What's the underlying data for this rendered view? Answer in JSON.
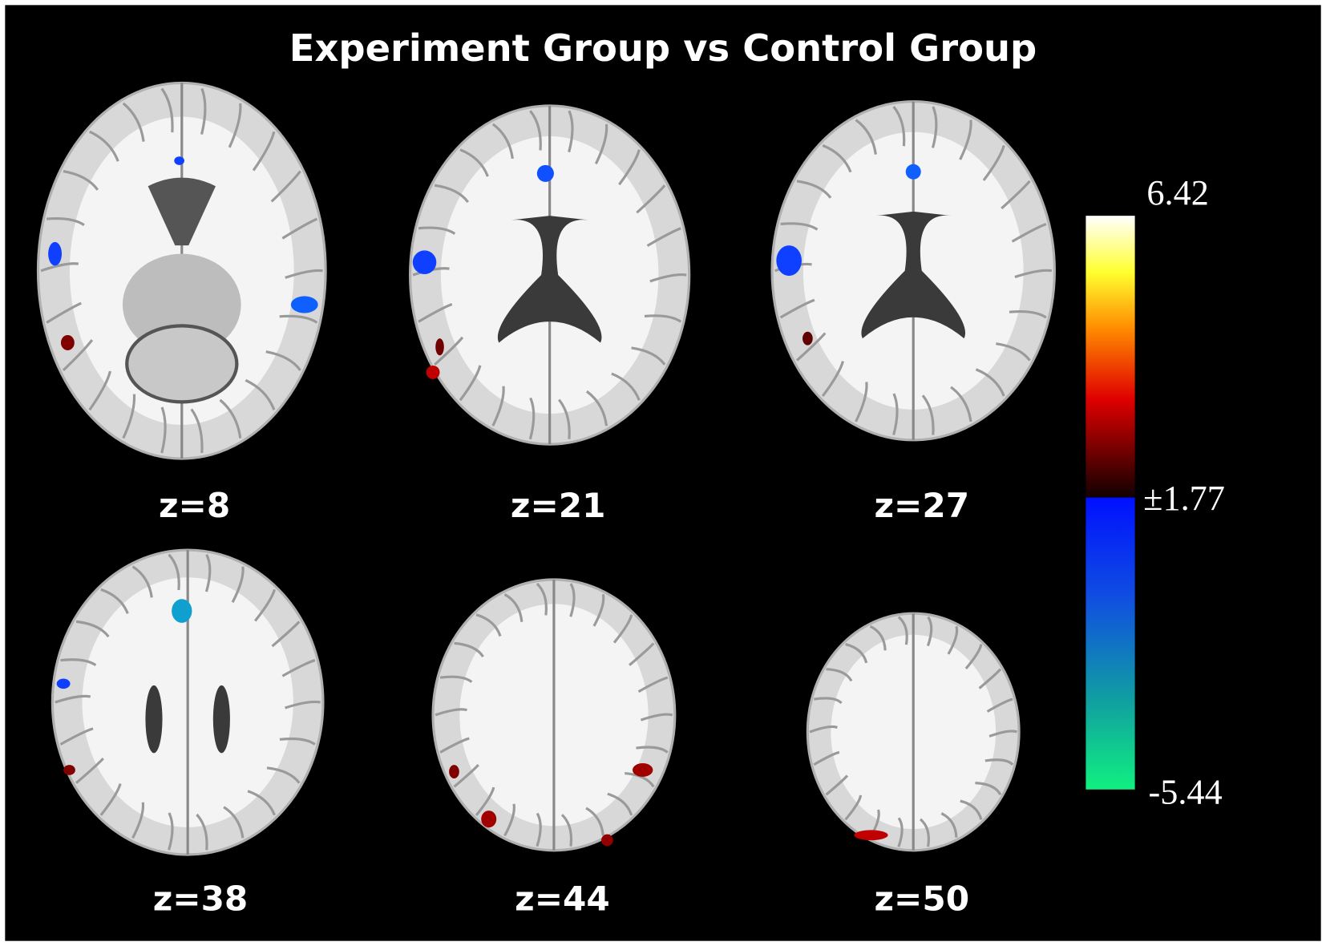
{
  "title": "Experiment Group vs Control Group",
  "slices": [
    {
      "label": "z=8"
    },
    {
      "label": "z=21"
    },
    {
      "label": "z=27"
    },
    {
      "label": "z=38"
    },
    {
      "label": "z=44"
    },
    {
      "label": "z=50"
    }
  ],
  "colorbar": {
    "max": "6.42",
    "threshold": "±1.77",
    "min": "-5.44"
  }
}
